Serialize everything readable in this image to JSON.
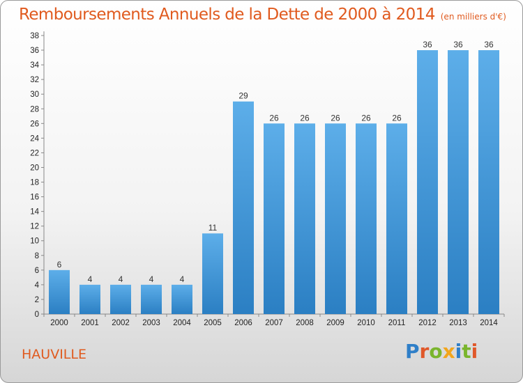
{
  "header": {
    "title": "Remboursements Annuels de la Dette de 2000 à 2014",
    "unit": "(en milliers d'€)"
  },
  "footer": {
    "city": "HAUVILLE",
    "logo": [
      "P",
      "r",
      "o",
      "x",
      "i",
      "t",
      "i"
    ]
  },
  "colors": {
    "title": "#e05a1e",
    "bar_top": "#5daee9",
    "bar_bottom": "#2b7fc3",
    "logo_letters": [
      "#2f7fc8",
      "#e0582a",
      "#7ab52d",
      "#f2a51c",
      "#2f7fc8",
      "#7ab52d",
      "#e0582a"
    ]
  },
  "chart_data": {
    "type": "bar",
    "title": "Remboursements Annuels de la Dette de 2000 à 2014",
    "subtitle": "(en milliers d'€)",
    "categories": [
      "2000",
      "2001",
      "2002",
      "2003",
      "2004",
      "2005",
      "2006",
      "2007",
      "2008",
      "2009",
      "2010",
      "2011",
      "2012",
      "2013",
      "2014"
    ],
    "values": [
      6,
      4,
      4,
      4,
      4,
      11,
      29,
      26,
      26,
      26,
      26,
      26,
      36,
      36,
      36
    ],
    "ylim": [
      0,
      38
    ],
    "yticks": [
      0,
      2,
      4,
      6,
      8,
      10,
      12,
      14,
      16,
      18,
      20,
      22,
      24,
      26,
      28,
      30,
      32,
      34,
      36,
      38
    ],
    "grid": false,
    "data_labels": true
  }
}
